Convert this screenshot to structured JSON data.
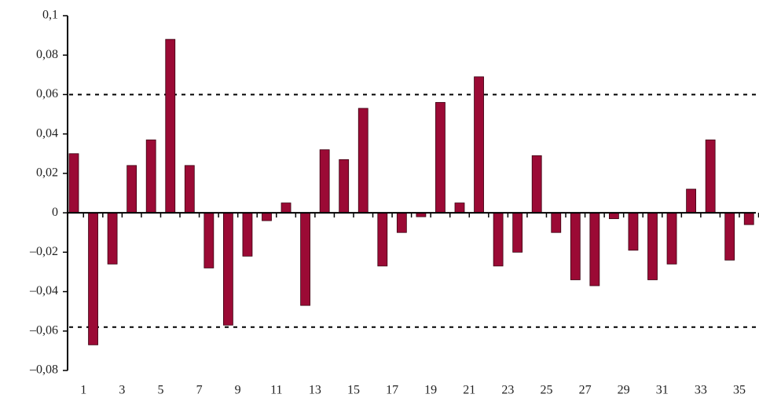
{
  "chart_data": {
    "type": "bar",
    "categories": [
      "1",
      null,
      "3",
      null,
      "5",
      null,
      "7",
      null,
      "9",
      null,
      "11",
      null,
      "13",
      null,
      "15",
      null,
      "17",
      null,
      "19",
      null,
      "21",
      null,
      "23",
      null,
      "25",
      null,
      "27",
      null,
      "29",
      null,
      "31",
      null,
      "33",
      null,
      "35",
      null
    ],
    "values": [
      0.03,
      -0.067,
      -0.026,
      0.024,
      0.037,
      0.088,
      0.024,
      -0.028,
      -0.057,
      -0.022,
      -0.004,
      0.005,
      -0.047,
      0.032,
      0.027,
      0.053,
      -0.027,
      -0.01,
      -0.002,
      0.056,
      0.005,
      0.069,
      -0.027,
      -0.02,
      0.029,
      -0.01,
      -0.034,
      -0.037,
      -0.003,
      -0.019,
      -0.034,
      -0.026,
      0.012,
      0.037,
      -0.024,
      -0.006
    ],
    "color": "#9b0a35",
    "ylim": [
      -0.08,
      0.1
    ],
    "yticks": [
      {
        "value": -0.08,
        "label": "–0,08"
      },
      {
        "value": -0.06,
        "label": "–0,06"
      },
      {
        "value": -0.04,
        "label": "–0,04"
      },
      {
        "value": -0.02,
        "label": "–0,02"
      },
      0,
      {
        "value": 0.02,
        "label": "0,02"
      },
      {
        "value": 0.04,
        "label": "0,04"
      },
      {
        "value": 0.06,
        "label": "0,06"
      },
      {
        "value": 0.08,
        "label": "0,08"
      },
      {
        "value": 0.1,
        "label": "0,1"
      }
    ],
    "bands": [
      0.06,
      -0.058
    ]
  }
}
